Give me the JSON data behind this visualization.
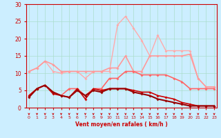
{
  "x": [
    0,
    1,
    2,
    3,
    4,
    5,
    6,
    7,
    8,
    9,
    10,
    11,
    12,
    13,
    14,
    15,
    16,
    17,
    18,
    19,
    20,
    21,
    22,
    23
  ],
  "lines": [
    {
      "y": [
        10.5,
        11.5,
        13.5,
        10.5,
        10.0,
        10.5,
        10.5,
        8.5,
        10.5,
        10.5,
        10.5,
        24.0,
        26.5,
        23.0,
        19.5,
        15.0,
        21.0,
        16.5,
        16.5,
        16.5,
        16.5,
        8.5,
        6.0,
        6.0
      ],
      "color": "#ffaaaa",
      "lw": 1.0,
      "marker": "D",
      "ms": 2.0,
      "zorder": 2
    },
    {
      "y": [
        10.5,
        11.5,
        13.5,
        12.5,
        10.5,
        10.5,
        10.5,
        10.5,
        10.5,
        10.5,
        11.5,
        11.5,
        15.0,
        10.5,
        10.5,
        15.0,
        15.0,
        15.0,
        15.0,
        15.0,
        15.5,
        8.5,
        6.0,
        6.0
      ],
      "color": "#ff9999",
      "lw": 1.2,
      "marker": "D",
      "ms": 2.0,
      "zorder": 3
    },
    {
      "y": [
        3.5,
        5.5,
        6.5,
        4.5,
        3.5,
        5.5,
        5.5,
        3.5,
        5.5,
        5.5,
        8.5,
        8.5,
        10.5,
        10.5,
        9.5,
        9.5,
        9.5,
        9.5,
        8.5,
        7.5,
        5.5,
        5.5,
        5.5,
        5.5
      ],
      "color": "#ff6666",
      "lw": 1.2,
      "marker": "D",
      "ms": 2.0,
      "zorder": 4
    },
    {
      "y": [
        3.5,
        5.5,
        6.5,
        4.0,
        3.5,
        3.0,
        5.5,
        2.5,
        5.5,
        5.0,
        5.5,
        5.5,
        5.5,
        5.0,
        4.5,
        4.5,
        3.5,
        3.0,
        2.5,
        1.5,
        1.0,
        0.5,
        0.5,
        0.5
      ],
      "color": "#cc0000",
      "lw": 1.2,
      "marker": "D",
      "ms": 2.0,
      "zorder": 5
    },
    {
      "y": [
        3.0,
        5.5,
        6.5,
        4.5,
        3.5,
        3.0,
        5.0,
        3.5,
        5.0,
        4.5,
        5.5,
        5.5,
        5.5,
        4.5,
        4.0,
        3.5,
        2.5,
        2.0,
        1.5,
        1.0,
        0.5,
        0.5,
        0.5,
        0.5
      ],
      "color": "#990000",
      "lw": 1.5,
      "marker": "D",
      "ms": 2.0,
      "zorder": 6
    }
  ],
  "xlim": [
    -0.3,
    23.3
  ],
  "ylim": [
    0,
    30
  ],
  "yticks": [
    0,
    5,
    10,
    15,
    20,
    25,
    30
  ],
  "xticks": [
    0,
    1,
    2,
    3,
    4,
    5,
    6,
    7,
    8,
    9,
    10,
    11,
    12,
    13,
    14,
    15,
    16,
    17,
    18,
    19,
    20,
    21,
    22,
    23
  ],
  "xlabel": "Vent moyen/en rafales ( km/h )",
  "bg_color": "#cceeff",
  "grid_color": "#aaddcc",
  "tick_color": "#cc0000",
  "xlabel_color": "#cc0000",
  "spine_color": "#cc0000"
}
